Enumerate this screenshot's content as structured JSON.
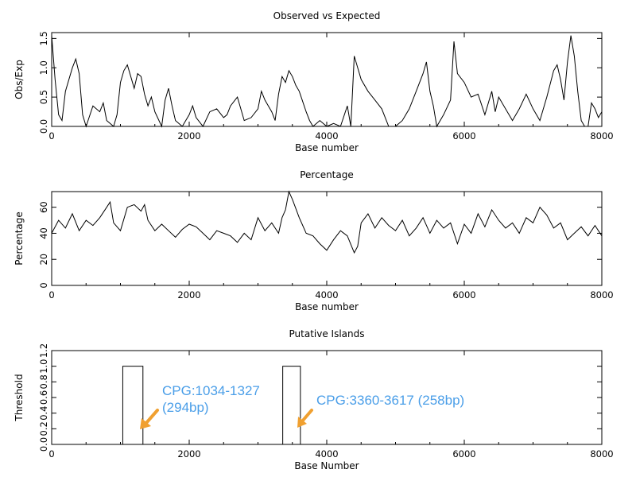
{
  "chart_data": [
    {
      "type": "line",
      "title": "Observed vs Expected",
      "xlabel": "Base number",
      "ylabel": "Obs/Exp",
      "xlim": [
        0,
        8000
      ],
      "ylim": [
        0,
        1.6
      ],
      "x_ticks": [
        "0",
        "2000",
        "4000",
        "6000",
        "8000"
      ],
      "y_ticks": [
        "0.0",
        "0.5",
        "1.0",
        "1.5"
      ],
      "grid": false,
      "series": [
        {
          "x": [
            0,
            50,
            100,
            150,
            200,
            300,
            350,
            400,
            450,
            500,
            600,
            700,
            750,
            800,
            900,
            950,
            1000,
            1050,
            1100,
            1150,
            1200,
            1250,
            1300,
            1350,
            1400,
            1450,
            1500,
            1600,
            1650,
            1700,
            1750,
            1800,
            1900,
            2000,
            2050,
            2100,
            2200,
            2300,
            2400,
            2500,
            2550,
            2600,
            2700,
            2800,
            2900,
            3000,
            3050,
            3100,
            3200,
            3250,
            3300,
            3350,
            3400,
            3450,
            3500,
            3550,
            3600,
            3700,
            3750,
            3800,
            3900,
            4000,
            4100,
            4200,
            4300,
            4350,
            4400,
            4500,
            4600,
            4700,
            4800,
            4900,
            5000,
            5100,
            5200,
            5300,
            5400,
            5450,
            5500,
            5550,
            5600,
            5700,
            5800,
            5850,
            5900,
            6000,
            6100,
            6200,
            6300,
            6400,
            6450,
            6500,
            6600,
            6700,
            6800,
            6900,
            7000,
            7100,
            7200,
            7300,
            7350,
            7400,
            7450,
            7500,
            7550,
            7600,
            7650,
            7700,
            7750,
            7800,
            7850,
            7900,
            7950,
            8000
          ],
          "y": [
            1.55,
            0.8,
            0.2,
            0.1,
            0.6,
            1.0,
            1.15,
            0.9,
            0.2,
            0.0,
            0.35,
            0.25,
            0.4,
            0.1,
            0.0,
            0.2,
            0.75,
            0.95,
            1.05,
            0.85,
            0.65,
            0.9,
            0.85,
            0.55,
            0.35,
            0.5,
            0.25,
            0.0,
            0.45,
            0.65,
            0.35,
            0.1,
            0.0,
            0.2,
            0.35,
            0.15,
            0.0,
            0.25,
            0.3,
            0.15,
            0.2,
            0.35,
            0.5,
            0.1,
            0.15,
            0.3,
            0.6,
            0.45,
            0.25,
            0.1,
            0.55,
            0.85,
            0.75,
            0.95,
            0.85,
            0.7,
            0.6,
            0.25,
            0.1,
            0.0,
            0.1,
            0.0,
            0.05,
            0.0,
            0.35,
            0.0,
            1.2,
            0.8,
            0.6,
            0.45,
            0.3,
            0.0,
            0.0,
            0.1,
            0.3,
            0.6,
            0.9,
            1.1,
            0.6,
            0.35,
            0.0,
            0.2,
            0.45,
            1.45,
            0.9,
            0.75,
            0.5,
            0.55,
            0.2,
            0.6,
            0.25,
            0.5,
            0.3,
            0.1,
            0.3,
            0.55,
            0.3,
            0.1,
            0.5,
            0.95,
            1.05,
            0.8,
            0.45,
            1.1,
            1.55,
            1.2,
            0.6,
            0.1,
            0.0,
            0.0,
            0.4,
            0.3,
            0.15,
            0.25
          ]
        }
      ]
    },
    {
      "type": "line",
      "title": "Percentage",
      "xlabel": "Base number",
      "ylabel": "Percentage",
      "xlim": [
        0,
        8000
      ],
      "ylim": [
        0,
        72
      ],
      "x_ticks": [
        "0",
        "2000",
        "4000",
        "6000",
        "8000"
      ],
      "y_ticks": [
        "0",
        "20",
        "40",
        "60"
      ],
      "grid": false,
      "series": [
        {
          "x": [
            0,
            100,
            200,
            300,
            400,
            500,
            600,
            700,
            800,
            850,
            900,
            1000,
            1100,
            1200,
            1300,
            1350,
            1400,
            1500,
            1600,
            1700,
            1800,
            1900,
            2000,
            2100,
            2200,
            2300,
            2400,
            2500,
            2600,
            2700,
            2800,
            2900,
            3000,
            3100,
            3200,
            3300,
            3350,
            3400,
            3450,
            3500,
            3600,
            3700,
            3800,
            3900,
            4000,
            4100,
            4200,
            4300,
            4400,
            4450,
            4500,
            4600,
            4700,
            4800,
            4900,
            5000,
            5100,
            5200,
            5300,
            5400,
            5500,
            5600,
            5700,
            5800,
            5900,
            6000,
            6100,
            6200,
            6300,
            6400,
            6500,
            6600,
            6700,
            6800,
            6900,
            7000,
            7100,
            7200,
            7300,
            7400,
            7500,
            7600,
            7700,
            7800,
            7900,
            8000
          ],
          "y": [
            40,
            50,
            44,
            55,
            42,
            50,
            46,
            52,
            60,
            64,
            48,
            42,
            60,
            62,
            57,
            62,
            50,
            42,
            47,
            42,
            37,
            43,
            47,
            45,
            40,
            35,
            42,
            40,
            38,
            33,
            40,
            35,
            52,
            42,
            48,
            40,
            52,
            58,
            72,
            66,
            52,
            40,
            38,
            32,
            27,
            35,
            42,
            38,
            25,
            30,
            48,
            55,
            44,
            52,
            46,
            42,
            50,
            38,
            44,
            52,
            40,
            50,
            44,
            48,
            32,
            47,
            40,
            55,
            45,
            58,
            50,
            44,
            48,
            40,
            52,
            48,
            60,
            54,
            44,
            48,
            35,
            40,
            45,
            38,
            46,
            38
          ]
        }
      ]
    },
    {
      "type": "bar",
      "title": "Putative Islands",
      "xlabel": "Base Number",
      "ylabel": "Threshold",
      "xlim": [
        0,
        8000
      ],
      "ylim": [
        0,
        1.2
      ],
      "x_ticks": [
        "0",
        "2000",
        "4000",
        "6000",
        "8000"
      ],
      "y_ticks": [
        "0.0",
        "0.2",
        "0.4",
        "0.6",
        "0.8",
        "1.0",
        "1.2"
      ],
      "grid": false,
      "islands": [
        {
          "start": 1034,
          "end": 1327,
          "value": 1.0
        },
        {
          "start": 3360,
          "end": 3617,
          "value": 1.0
        }
      ],
      "annotations": [
        {
          "lines": [
            "CPG:1034-1327",
            "(294bp)"
          ]
        },
        {
          "lines": [
            "CPG:3360-3617 (258bp)"
          ]
        }
      ],
      "annotation_color": "#4a9ee8",
      "arrow_color": "#f0a030"
    }
  ]
}
